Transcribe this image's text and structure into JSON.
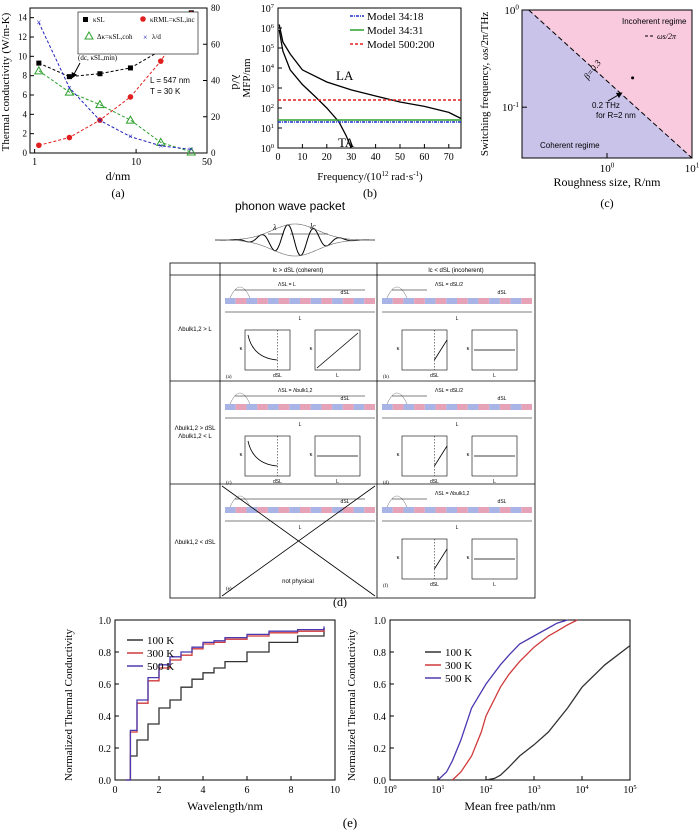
{
  "panel_a": {
    "caption": "(a)",
    "xlabel": "d/nm",
    "ylabel_left": "Thermal conductivity (W/m-K)",
    "ylabel_right": "λ/d",
    "legend": [
      "κSL",
      "κRML=κSL,inc",
      "Δκ=κSL,coh",
      "λ/d"
    ],
    "annotation_min": "(dc, κSL,min)",
    "annotation_L": "L = 547 nm",
    "annotation_T": "T = 30 K",
    "xticks": [
      "1",
      "10",
      "50"
    ],
    "yticks_left": [
      "0",
      "2",
      "4",
      "6",
      "8",
      "10",
      "12",
      "14"
    ],
    "yticks_right": [
      "0",
      "20",
      "40",
      "60",
      "80"
    ]
  },
  "panel_b": {
    "caption": "(b)",
    "xlabel": "Frequency/(10",
    "xlabel_sup": "12",
    "xlabel_tail": " rad·s",
    "xlabel_sup2": "-1",
    "xlabel_end": ")",
    "ylabel": "MFP/nm",
    "legend": [
      "Model 34:18",
      "Model 34:31",
      "Model 500:200"
    ],
    "label_LA": "LA",
    "label_TA": "TA",
    "xticks": [
      "0",
      "10",
      "20",
      "30",
      "40",
      "50",
      "60",
      "70"
    ],
    "yticks": [
      "10",
      "10",
      "10",
      "10",
      "10",
      "10",
      "10",
      "10"
    ],
    "yticks_exp": [
      "0",
      "1",
      "2",
      "3",
      "4",
      "5",
      "6",
      "7"
    ]
  },
  "panel_c": {
    "caption": "(c)",
    "xlabel": "Roughness size, R/nm",
    "ylabel": "Switching frequency, ωs/2π/THz",
    "region_incoherent": "Incoherent regime",
    "region_coherent": "Coherent regime",
    "legend": "ωs/2π",
    "beta": "β=0.3",
    "annot_1": "0.2 THz",
    "annot_2": "for R=2 nm",
    "xticks": [
      "10",
      "10"
    ],
    "xticks_exp": [
      "0",
      "1"
    ],
    "yticks": [
      "10",
      "10"
    ],
    "yticks_exp": [
      "-1",
      "0"
    ],
    "colors": {
      "incoherent": "#f9c9de",
      "coherent": "#c9c3ea"
    }
  },
  "panel_d": {
    "caption": "(d)",
    "packet_title": "phonon wave packet",
    "lambda": "λ",
    "lc": "lc",
    "col1": "lc > dSL (coherent)",
    "col2": "lc < dSL (incoherent)",
    "row1": "Λbulk1,2 > L",
    "row2a": "Λbulk1,2 > dSL",
    "row2b": "Λbulk1,2 < L",
    "row3": "Λbulk1,2 < dSL",
    "cell_labels": [
      "(a)",
      "(b)",
      "(c)",
      "(d)",
      "(e)",
      "(f)"
    ],
    "lam_eq_L": "ΛSL = L",
    "lam_eq_d2": "ΛSL = dSL/2",
    "lam_eq_bulk": "ΛSL = Λbulk1,2",
    "not_physical": "not physical",
    "dSL": "dSL",
    "L": "L",
    "kappa": "κ"
  },
  "panel_e": {
    "caption": "(e)",
    "left": {
      "xlabel": "Wavelength/nm",
      "ylabel": "Normalized Thermal Conductivity",
      "xticks": [
        "0",
        "2",
        "4",
        "6",
        "8",
        "10"
      ],
      "yticks": [
        "0.0",
        "0.2",
        "0.4",
        "0.6",
        "0.8",
        "1.0"
      ],
      "legend": [
        "100 K",
        "300 K",
        "500 K"
      ]
    },
    "right": {
      "xlabel": "Mean free path/nm",
      "ylabel": "Normalized Thermal Conductivity",
      "xticks": [
        "10",
        "10",
        "10",
        "10",
        "10",
        "10"
      ],
      "xticks_exp": [
        "0",
        "1",
        "2",
        "3",
        "4",
        "5"
      ],
      "yticks": [
        "0.0",
        "0.2",
        "0.4",
        "0.6",
        "0.8",
        "1.0"
      ],
      "legend": [
        "100 K",
        "300 K",
        "500 K"
      ]
    },
    "colors": [
      "#333333",
      "#d03a3a",
      "#4a3ab0"
    ]
  },
  "chart_data": [
    {
      "type": "scatter",
      "id": "a",
      "xscale": "log",
      "xlim": [
        0.9,
        50
      ],
      "ylim": [
        0,
        15
      ],
      "y2lim": [
        0,
        80
      ],
      "series": [
        {
          "name": "κSL",
          "x": [
            1.1,
            2.2,
            4.4,
            8.8,
            17.5,
            35
          ],
          "y": [
            9.3,
            7.9,
            8.2,
            8.8,
            10.6,
            14.5
          ]
        },
        {
          "name": "κRML=κSL,inc",
          "x": [
            1.1,
            2.2,
            4.4,
            8.8,
            17.5,
            35
          ],
          "y": [
            0.8,
            1.6,
            3.4,
            5.8,
            9.5,
            14.4
          ]
        },
        {
          "name": "Δκ=κSL,coh",
          "x": [
            1.1,
            2.2,
            4.4,
            8.8,
            17.5,
            35
          ],
          "y": [
            8.5,
            6.3,
            5.0,
            3.4,
            1.1,
            0.1
          ]
        },
        {
          "name": "λ/d",
          "axis": "right",
          "x": [
            1.1,
            2.2,
            4.4,
            8.8,
            17.5,
            35
          ],
          "y": [
            72,
            36,
            18,
            9,
            4,
            2
          ]
        }
      ]
    },
    {
      "type": "line",
      "id": "b",
      "yscale": "log",
      "xlim": [
        0,
        75
      ],
      "ylim": [
        1,
        10000000
      ],
      "series": [
        {
          "name": "LA",
          "x": [
            0.5,
            2,
            5,
            10,
            20,
            30,
            40,
            50,
            60,
            70,
            75
          ],
          "y": [
            1500000,
            200000,
            50000,
            8000,
            2000,
            800,
            400,
            200,
            120,
            60,
            30
          ]
        },
        {
          "name": "TA",
          "x": [
            0.5,
            2,
            5,
            10,
            15,
            20,
            25,
            28,
            30
          ],
          "y": [
            800000,
            70000,
            8000,
            1500,
            400,
            100,
            20,
            4,
            1
          ]
        },
        {
          "name": "Model 34:18",
          "x": [
            0,
            75
          ],
          "y": [
            20,
            20
          ]
        },
        {
          "name": "Model 34:31",
          "x": [
            0,
            75
          ],
          "y": [
            25,
            25
          ]
        },
        {
          "name": "Model 500:200",
          "x": [
            0,
            75
          ],
          "y": [
            250,
            250
          ]
        }
      ]
    },
    {
      "type": "line",
      "id": "c",
      "xscale": "log",
      "yscale": "log",
      "xlim": [
        0.1,
        10
      ],
      "ylim": [
        0.03,
        1
      ],
      "series": [
        {
          "name": "ωs/2π",
          "x": [
            0.12,
            10
          ],
          "y": [
            1,
            0.03
          ]
        }
      ],
      "point": {
        "x": 2,
        "y": 0.2
      }
    },
    {
      "type": "line",
      "id": "e-left",
      "xlim": [
        0,
        10
      ],
      "ylim": [
        0,
        1
      ],
      "series": [
        {
          "name": "100 K",
          "x": [
            0.5,
            0.7,
            1,
            1.5,
            2,
            2.5,
            3,
            3.5,
            4,
            4.5,
            5,
            6,
            7,
            8.3,
            9.5
          ],
          "y": [
            0,
            0.15,
            0.25,
            0.35,
            0.45,
            0.5,
            0.58,
            0.63,
            0.67,
            0.7,
            0.74,
            0.8,
            0.86,
            0.9,
            0.95
          ]
        },
        {
          "name": "300 K",
          "x": [
            0.5,
            0.7,
            1,
            1.5,
            2,
            2.5,
            3,
            3.5,
            4,
            4.5,
            5,
            6,
            7,
            8.3,
            9.5
          ],
          "y": [
            0,
            0.3,
            0.48,
            0.62,
            0.7,
            0.75,
            0.78,
            0.82,
            0.85,
            0.86,
            0.88,
            0.9,
            0.92,
            0.93,
            0.95
          ]
        },
        {
          "name": "500 K",
          "x": [
            0.5,
            0.7,
            1,
            1.5,
            2,
            2.5,
            3,
            3.5,
            4,
            4.5,
            5,
            6,
            7,
            8.3,
            9.5
          ],
          "y": [
            0,
            0.31,
            0.5,
            0.64,
            0.72,
            0.77,
            0.8,
            0.83,
            0.86,
            0.87,
            0.89,
            0.91,
            0.93,
            0.94,
            0.96
          ]
        }
      ]
    },
    {
      "type": "line",
      "id": "e-right",
      "xscale": "log",
      "xlim": [
        1,
        100000
      ],
      "ylim": [
        0,
        1
      ],
      "series": [
        {
          "name": "100 K",
          "x": [
            100,
            150,
            200,
            300,
            500,
            1000,
            2000,
            5000,
            10000,
            30000,
            100000
          ],
          "y": [
            0,
            0.01,
            0.03,
            0.08,
            0.15,
            0.22,
            0.3,
            0.45,
            0.58,
            0.72,
            0.84
          ]
        },
        {
          "name": "300 K",
          "x": [
            20,
            30,
            50,
            80,
            100,
            200,
            300,
            500,
            1000,
            2000,
            3000,
            5000,
            8000
          ],
          "y": [
            0,
            0.05,
            0.15,
            0.3,
            0.4,
            0.58,
            0.66,
            0.74,
            0.83,
            0.9,
            0.93,
            0.97,
            1.0
          ]
        },
        {
          "name": "500 K",
          "x": [
            10,
            15,
            20,
            30,
            50,
            100,
            200,
            300,
            500,
            1000,
            2000,
            3000,
            5000
          ],
          "y": [
            0,
            0.05,
            0.12,
            0.25,
            0.45,
            0.6,
            0.72,
            0.78,
            0.85,
            0.9,
            0.95,
            0.98,
            1.0
          ]
        }
      ]
    }
  ]
}
